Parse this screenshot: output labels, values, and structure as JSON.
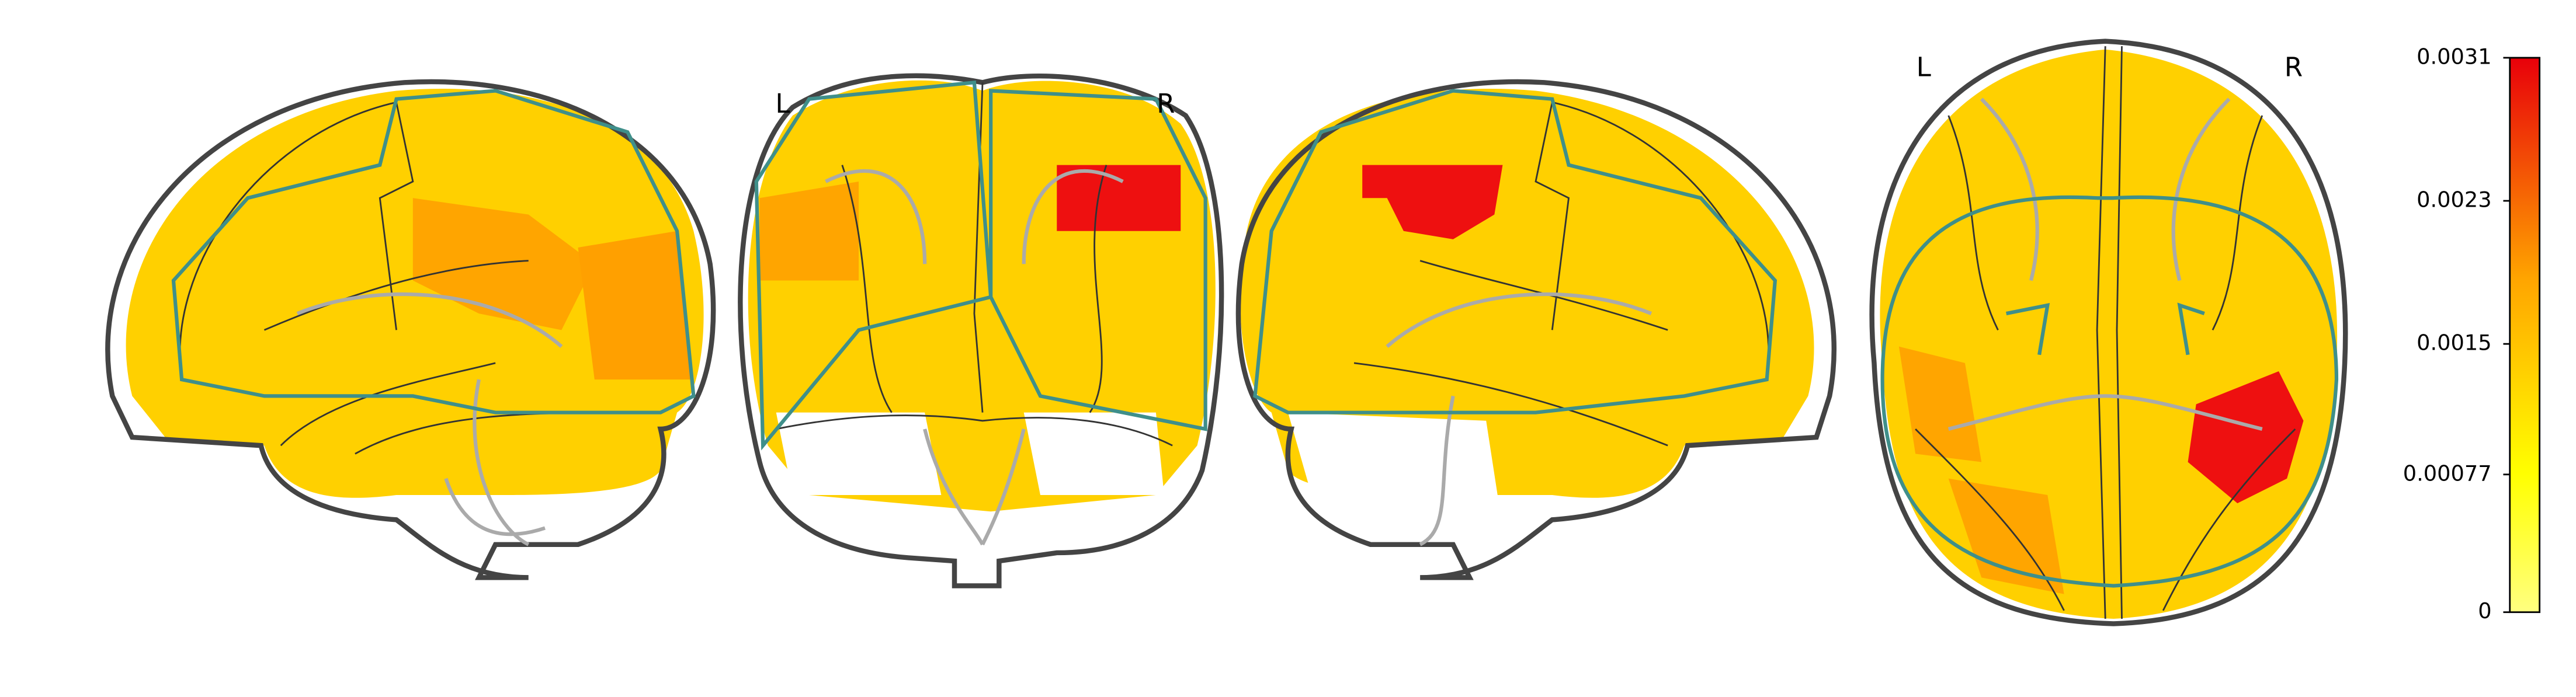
{
  "views": [
    {
      "labels": []
    },
    {
      "labels": [
        "L",
        "R"
      ]
    },
    {
      "labels": []
    },
    {
      "labels": [
        "L",
        "R"
      ]
    }
  ],
  "colorbar": {
    "lim": [
      0,
      0.0031
    ],
    "ticks": [
      0,
      0.00077,
      0.0015,
      0.0023,
      0.0031
    ]
  }
}
